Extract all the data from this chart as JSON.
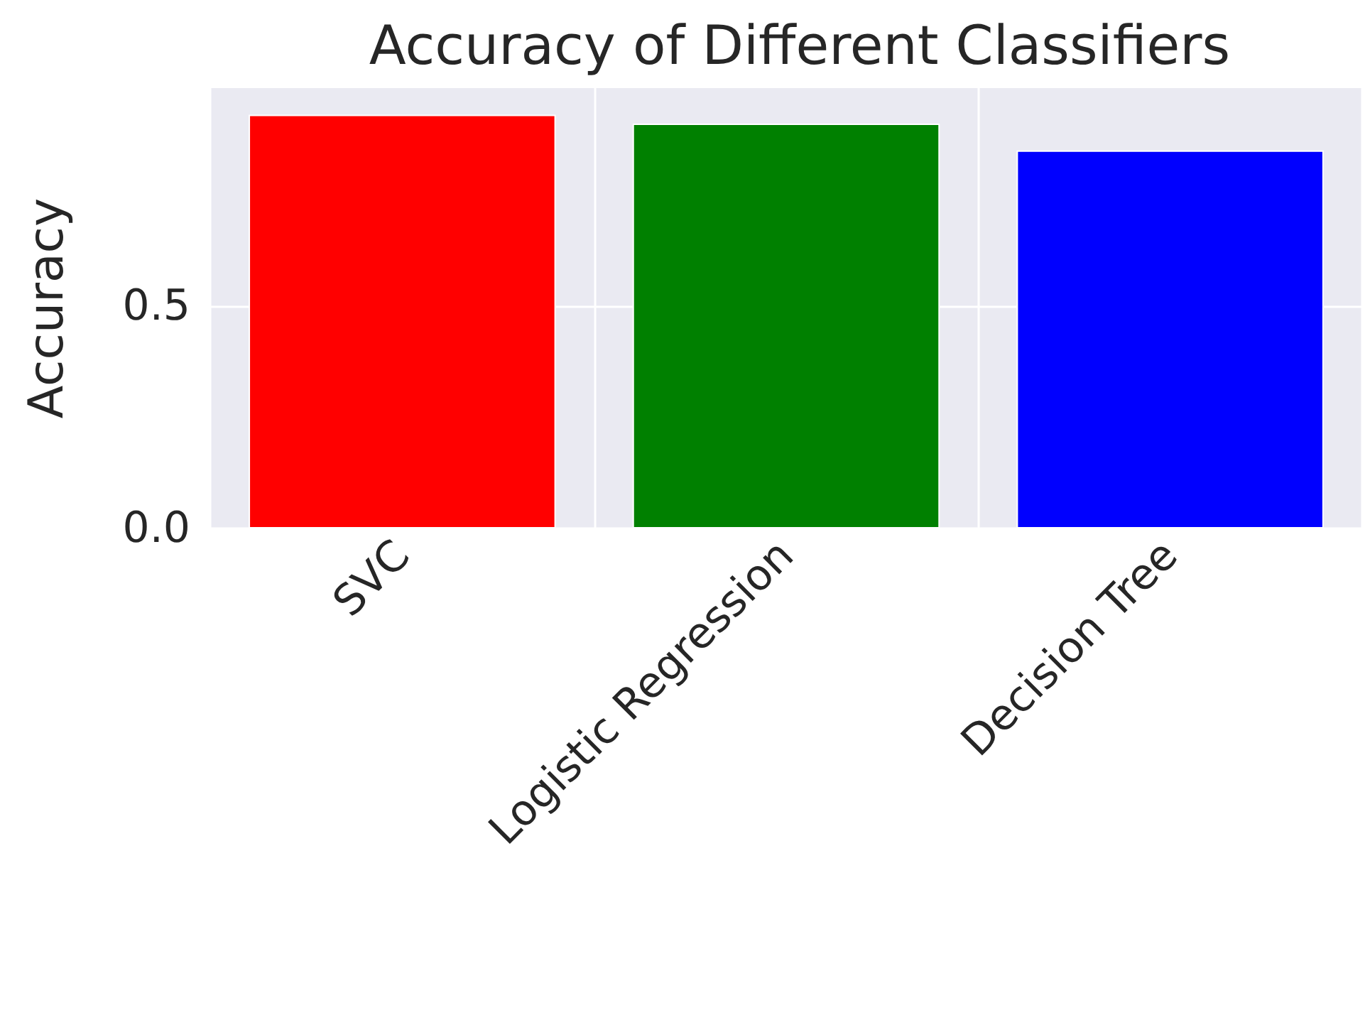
{
  "chart_data": {
    "type": "bar",
    "title": "Accuracy of Different Classifiers",
    "ylabel": "Accuracy",
    "categories": [
      "SVC",
      "Logistic Regression",
      "Decision Tree"
    ],
    "values": [
      0.93,
      0.91,
      0.85
    ],
    "colors": [
      "#ff0000",
      "#008000",
      "#0000ff"
    ],
    "ylim": [
      0,
      0.99
    ],
    "yticks": [
      {
        "value": 0,
        "label": "0.0"
      },
      {
        "value": 0.5,
        "label": "0.5"
      }
    ],
    "grid": true
  }
}
